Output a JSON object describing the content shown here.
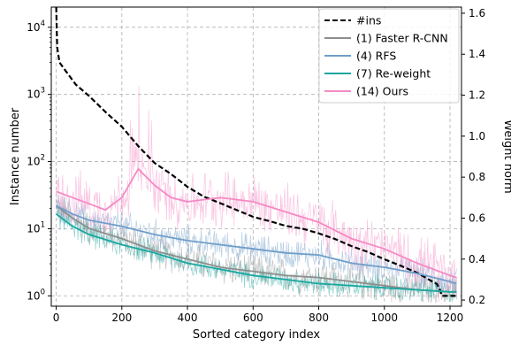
{
  "chart_data": {
    "type": "line",
    "xlabel": "Sorted category index",
    "ylabel_left": "Instance number",
    "ylabel_right": "Weight norm",
    "xlim": [
      -15,
      1235
    ],
    "ylim_left": [
      0.7,
      20000
    ],
    "yscale_left": "log",
    "ylim_right": [
      0.17,
      1.63
    ],
    "x_ticks": [
      0,
      200,
      400,
      600,
      800,
      1000,
      1200
    ],
    "y_left_ticks": [
      {
        "value": 1,
        "base": "10",
        "exp": "0"
      },
      {
        "value": 10,
        "base": "10",
        "exp": "1"
      },
      {
        "value": 100,
        "base": "10",
        "exp": "2"
      },
      {
        "value": 1000,
        "base": "10",
        "exp": "3"
      },
      {
        "value": 10000,
        "base": "10",
        "exp": "4"
      }
    ],
    "y_right_ticks": [
      "0.2",
      "0.4",
      "0.6",
      "0.8",
      "1.0",
      "1.2",
      "1.4",
      "1.6"
    ],
    "grid": true,
    "legend_position": "top-right",
    "series": [
      {
        "name": "#ins",
        "axis": "left",
        "color": "#000000",
        "style": "dashed",
        "x": [
          0,
          3,
          10,
          30,
          60,
          100,
          150,
          200,
          250,
          300,
          350,
          400,
          450,
          500,
          550,
          600,
          650,
          700,
          750,
          800,
          850,
          900,
          950,
          1000,
          1050,
          1100,
          1140,
          1160,
          1170,
          1175,
          1180,
          1200,
          1220
        ],
        "y": [
          20000,
          5000,
          3000,
          2200,
          1400,
          950,
          550,
          330,
          170,
          95,
          65,
          42,
          30,
          24,
          19,
          15,
          13,
          11,
          10,
          8.5,
          7,
          5.5,
          4.5,
          3.5,
          2.8,
          2.2,
          1.7,
          1.5,
          1.2,
          1.0,
          1.0,
          1.0,
          1.0
        ]
      },
      {
        "name": "(1) Faster R-CNN",
        "axis": "right",
        "color": "#8e8e8e",
        "style": "solid",
        "x": [
          0,
          50,
          100,
          200,
          300,
          400,
          500,
          600,
          700,
          800,
          900,
          1000,
          1100,
          1200,
          1220
        ],
        "y": [
          0.66,
          0.6,
          0.55,
          0.5,
          0.44,
          0.4,
          0.36,
          0.34,
          0.32,
          0.31,
          0.29,
          0.27,
          0.25,
          0.24,
          0.24
        ]
      },
      {
        "name": "(4) RFS",
        "axis": "right",
        "color": "#6f9ec9",
        "style": "solid",
        "x": [
          0,
          50,
          100,
          200,
          300,
          400,
          500,
          600,
          700,
          800,
          900,
          1000,
          1100,
          1200,
          1220
        ],
        "y": [
          0.66,
          0.62,
          0.59,
          0.56,
          0.52,
          0.49,
          0.47,
          0.45,
          0.43,
          0.42,
          0.38,
          0.36,
          0.33,
          0.29,
          0.28
        ]
      },
      {
        "name": "(7) Re-weight",
        "axis": "right",
        "color": "#1aa7a0",
        "style": "solid",
        "x": [
          0,
          50,
          100,
          200,
          300,
          400,
          500,
          600,
          700,
          800,
          900,
          1000,
          1100,
          1200,
          1220
        ],
        "y": [
          0.62,
          0.56,
          0.52,
          0.47,
          0.43,
          0.38,
          0.35,
          0.32,
          0.3,
          0.28,
          0.27,
          0.26,
          0.25,
          0.24,
          0.24
        ]
      },
      {
        "name": "(14) Ours",
        "axis": "right",
        "color": "#f58ac5",
        "style": "solid",
        "x": [
          0,
          50,
          100,
          150,
          200,
          250,
          300,
          350,
          400,
          450,
          500,
          600,
          700,
          800,
          900,
          1000,
          1100,
          1200,
          1220
        ],
        "y": [
          0.73,
          0.7,
          0.67,
          0.64,
          0.7,
          0.84,
          0.76,
          0.7,
          0.68,
          0.69,
          0.7,
          0.68,
          0.63,
          0.58,
          0.5,
          0.45,
          0.38,
          0.32,
          0.31
        ]
      }
    ]
  }
}
